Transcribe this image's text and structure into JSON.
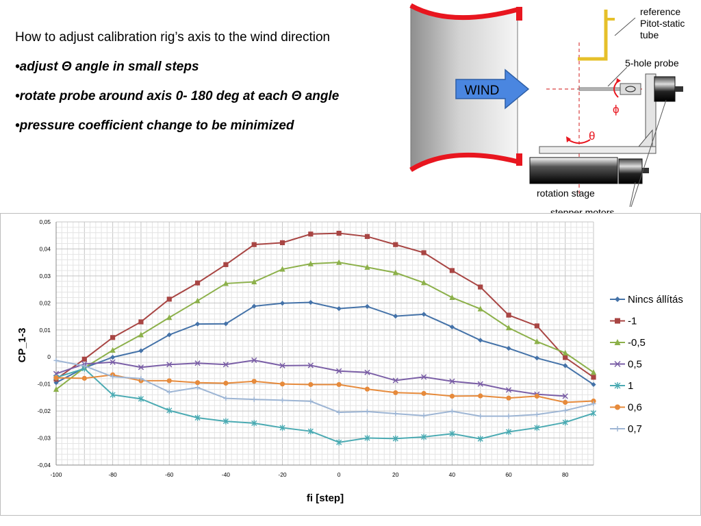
{
  "slide": {
    "heading": "How to adjust calibration rig’s axis to the wind direction",
    "bullets": [
      {
        "prefix": "•",
        "pre": "adjust ",
        "symbol": "Θ",
        "post": " angle in small steps"
      },
      {
        "prefix": "•",
        "pre": "rotate probe around axis 0- 180 deg at each ",
        "symbol": "Θ",
        "post": " angle"
      },
      {
        "prefix": "•",
        "pre": "pressure coefficient change to be minimized",
        "symbol": "",
        "post": ""
      }
    ]
  },
  "diagram": {
    "wind_label": "WIND",
    "reference_label_lines": [
      "reference",
      "Pitot-static",
      "tube"
    ],
    "probe_label": "5-hole probe",
    "phi_label": "ϕ",
    "theta_label": "θ",
    "rotation_stage_label": "rotation stage",
    "stepper_motors_label": "stepper motors",
    "colors": {
      "nozzle_rim": "#e8161f",
      "wind_arrow": "#4a86e0",
      "pitot_tube": "#e6c02a",
      "rotation_arrow": "#e8161f"
    }
  },
  "chart_data": {
    "type": "line",
    "title": "",
    "xlabel": "fi [step]",
    "ylabel": "CP_1-3",
    "xlim": [
      -100,
      90
    ],
    "ylim": [
      -0.04,
      0.05
    ],
    "x_ticks": [
      "-100",
      "-80",
      "-60",
      "-40",
      "-20",
      "0",
      "20",
      "40",
      "60",
      "80"
    ],
    "x_tick_values": [
      -100,
      -80,
      -60,
      -40,
      -20,
      0,
      20,
      40,
      60,
      80
    ],
    "y_ticks": [
      "0,05",
      "0,04",
      "0,03",
      "0,02",
      "0,01",
      "0",
      "-0,01",
      "-0,02",
      "-0,03",
      "-0,04"
    ],
    "y_tick_values": [
      0.05,
      0.04,
      0.03,
      0.02,
      0.01,
      0,
      -0.01,
      -0.02,
      -0.03,
      -0.04
    ],
    "grid": true,
    "legend_position": "right",
    "x": [
      -100,
      -90,
      -80,
      -70,
      -60,
      -50,
      -40,
      -30,
      -20,
      -10,
      0,
      10,
      20,
      30,
      40,
      50,
      60,
      70,
      80,
      90
    ],
    "series": [
      {
        "name": "Nincs állítás",
        "color": "#4472a8",
        "marker": "diamond",
        "values": [
          -0.0095,
          -0.004,
          -0.0001,
          0.0023,
          0.0082,
          0.0122,
          0.0123,
          0.0188,
          0.0199,
          0.0202,
          0.0179,
          0.0187,
          0.0151,
          0.0158,
          0.0111,
          0.0062,
          0.0032,
          -0.0004,
          -0.0032,
          -0.0102
        ]
      },
      {
        "name": "-1",
        "color": "#a84543",
        "marker": "square",
        "values": [
          -0.0082,
          -0.0008,
          0.0072,
          0.013,
          0.0214,
          0.0274,
          0.0342,
          0.0416,
          0.0423,
          0.0455,
          0.0458,
          0.0446,
          0.0416,
          0.0386,
          0.032,
          0.0259,
          0.0155,
          0.0115,
          -0.0002,
          -0.0075
        ]
      },
      {
        "name": "-0,5",
        "color": "#8cb04a",
        "marker": "triangle",
        "values": [
          -0.012,
          -0.004,
          0.0025,
          0.0082,
          0.0146,
          0.0208,
          0.0272,
          0.0278,
          0.0325,
          0.0345,
          0.035,
          0.0332,
          0.0312,
          0.0275,
          0.022,
          0.0178,
          0.0108,
          0.0057,
          0.0015,
          -0.0057
        ]
      },
      {
        "name": "0,5",
        "color": "#7a5ea6",
        "marker": "x",
        "values": [
          -0.0062,
          -0.0026,
          -0.0019,
          -0.0038,
          -0.0028,
          -0.0023,
          -0.0028,
          -0.0012,
          -0.0032,
          -0.0031,
          -0.0052,
          -0.0057,
          -0.0087,
          -0.0074,
          -0.009,
          -0.01,
          -0.0122,
          -0.0138,
          -0.0145,
          null
        ]
      },
      {
        "name": "1",
        "color": "#4aaab2",
        "marker": "star",
        "values": [
          -0.0076,
          -0.0043,
          -0.014,
          -0.0155,
          -0.0198,
          -0.0225,
          -0.0238,
          -0.0245,
          -0.0262,
          -0.0275,
          -0.0316,
          -0.03,
          -0.0302,
          -0.0296,
          -0.0284,
          -0.0303,
          -0.0277,
          -0.0262,
          -0.0242,
          -0.0208
        ]
      },
      {
        "name": "0,6",
        "color": "#e68a3b",
        "marker": "circle",
        "values": [
          -0.0077,
          -0.0079,
          -0.0066,
          -0.0088,
          -0.0088,
          -0.0095,
          -0.0097,
          -0.009,
          -0.01,
          -0.0102,
          -0.0102,
          -0.0119,
          -0.0132,
          -0.0135,
          -0.0145,
          -0.0144,
          -0.0152,
          -0.0145,
          -0.0168,
          -0.0163
        ]
      },
      {
        "name": "0,7",
        "color": "#9db5d4",
        "marker": "plus",
        "values": [
          -0.0013,
          -0.0033,
          -0.0073,
          -0.008,
          -0.013,
          -0.0113,
          -0.0153,
          -0.0157,
          -0.016,
          -0.0164,
          -0.0205,
          -0.0202,
          -0.021,
          -0.0217,
          -0.0201,
          -0.0219,
          -0.0219,
          -0.0213,
          -0.0198,
          -0.0173
        ]
      }
    ]
  }
}
